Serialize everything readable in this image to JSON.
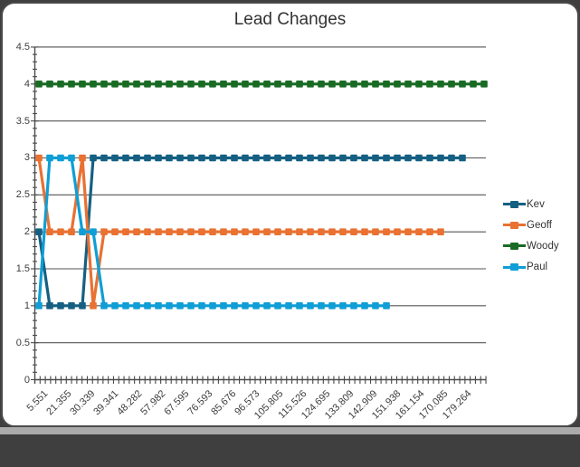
{
  "chart_data": {
    "type": "line",
    "title": "Lead Changes",
    "xlabel": "",
    "ylabel": "",
    "ylim": [
      0,
      4.5
    ],
    "grid": true,
    "legend_position": "right",
    "marker": "square",
    "y_tick_labels": [
      "4.5",
      "4",
      "3.5",
      "3",
      "2.5",
      "2",
      "1.5",
      "1",
      "0.5",
      "0"
    ],
    "x_tick_labels": [
      "5.551",
      "21.355",
      "30.339",
      "39.341",
      "48.282",
      "57.982",
      "67.595",
      "76.593",
      "85.676",
      "96.573",
      "105.805",
      "115.526",
      "124.695",
      "133.809",
      "142.909",
      "151.938",
      "161.154",
      "170.085",
      "179.264"
    ],
    "series": [
      {
        "name": "Kev",
        "color": "#156082",
        "values": [
          2,
          1,
          1,
          1,
          1,
          3,
          3,
          3,
          3,
          3,
          3,
          3,
          3,
          3,
          3,
          3,
          3,
          3,
          3,
          3,
          3,
          3,
          3,
          3,
          3,
          3,
          3,
          3,
          3,
          3,
          3,
          3,
          3,
          3,
          3,
          3,
          3,
          3,
          3,
          3
        ]
      },
      {
        "name": "Geoff",
        "color": "#E97132",
        "values": [
          3,
          2,
          2,
          2,
          3,
          1,
          2,
          2,
          2,
          2,
          2,
          2,
          2,
          2,
          2,
          2,
          2,
          2,
          2,
          2,
          2,
          2,
          2,
          2,
          2,
          2,
          2,
          2,
          2,
          2,
          2,
          2,
          2,
          2,
          2,
          2,
          2,
          2
        ]
      },
      {
        "name": "Woody",
        "color": "#196B24",
        "values": [
          4,
          4,
          4,
          4,
          4,
          4,
          4,
          4,
          4,
          4,
          4,
          4,
          4,
          4,
          4,
          4,
          4,
          4,
          4,
          4,
          4,
          4,
          4,
          4,
          4,
          4,
          4,
          4,
          4,
          4,
          4,
          4,
          4,
          4,
          4,
          4,
          4,
          4,
          4,
          4,
          4,
          4
        ]
      },
      {
        "name": "Paul",
        "color": "#0F9ED5",
        "values": [
          1,
          3,
          3,
          3,
          2,
          2,
          1,
          1,
          1,
          1,
          1,
          1,
          1,
          1,
          1,
          1,
          1,
          1,
          1,
          1,
          1,
          1,
          1,
          1,
          1,
          1,
          1,
          1,
          1,
          1,
          1,
          1,
          1
        ]
      }
    ],
    "axis_color": "#4a4a4a",
    "gridline_color": "#555555",
    "text_color": "#3d3d3d"
  }
}
